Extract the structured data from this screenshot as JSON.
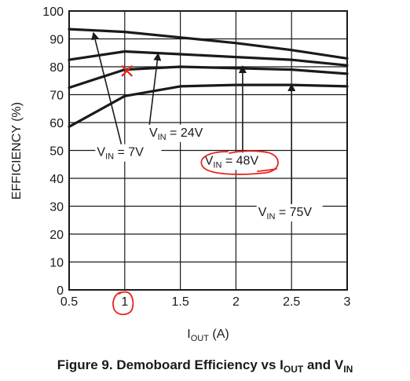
{
  "chart_data": {
    "type": "line",
    "xlabel": {
      "main": "I",
      "sub": "OUT",
      "rest": " (A)"
    },
    "ylabel": "EFFICIENCY (%)",
    "xlim": [
      0.5,
      3
    ],
    "ylim": [
      0,
      100
    ],
    "xticks": [
      {
        "value": 0.5,
        "label": "0.5"
      },
      {
        "value": 1,
        "label": "1"
      },
      {
        "value": 1.5,
        "label": "1.5"
      },
      {
        "value": 2,
        "label": "2"
      },
      {
        "value": 2.5,
        "label": "2.5"
      },
      {
        "value": 3,
        "label": "3"
      }
    ],
    "yticks": [
      {
        "value": 0,
        "label": "0"
      },
      {
        "value": 10,
        "label": "10"
      },
      {
        "value": 20,
        "label": "20"
      },
      {
        "value": 30,
        "label": "30"
      },
      {
        "value": 40,
        "label": "40"
      },
      {
        "value": 50,
        "label": "50"
      },
      {
        "value": 60,
        "label": "60"
      },
      {
        "value": 70,
        "label": "70"
      },
      {
        "value": 80,
        "label": "80"
      },
      {
        "value": 90,
        "label": "90"
      },
      {
        "value": 100,
        "label": "100"
      }
    ],
    "grid": true,
    "series": [
      {
        "name": "VIN = 7V",
        "x": [
          0.5,
          1,
          1.5,
          2,
          2.5,
          3
        ],
        "y": [
          93.5,
          92.5,
          90.5,
          88.5,
          86,
          83
        ]
      },
      {
        "name": "VIN = 24V",
        "x": [
          0.5,
          1,
          1.5,
          2,
          2.5,
          3
        ],
        "y": [
          82.5,
          85.5,
          84.5,
          83.5,
          82.5,
          80.5
        ]
      },
      {
        "name": "VIN = 48V",
        "x": [
          0.5,
          1,
          1.5,
          2,
          2.5,
          3
        ],
        "y": [
          72.5,
          79,
          80,
          79.5,
          79,
          77.5
        ]
      },
      {
        "name": "VIN = 75V",
        "x": [
          0.5,
          1,
          1.5,
          2,
          2.5,
          3
        ],
        "y": [
          58.5,
          69.5,
          73,
          73.5,
          73.5,
          73
        ]
      }
    ],
    "annotations": [
      {
        "main": "V",
        "sub": "IN",
        "rest": " = 7V",
        "text_at": [
          0.75,
          48
        ],
        "arrow_from": [
          0.98,
          50.5
        ],
        "arrow_to": [
          0.72,
          92
        ]
      },
      {
        "main": "V",
        "sub": "IN",
        "rest": " = 24V",
        "text_at": [
          1.22,
          55
        ],
        "arrow_from": [
          1.22,
          58.5
        ],
        "arrow_to": [
          1.3,
          84.5
        ]
      },
      {
        "main": "V",
        "sub": "IN",
        "rest": " = 48V",
        "text_at": [
          1.72,
          45
        ],
        "arrow_from": [
          2.06,
          47.5
        ],
        "arrow_to": [
          2.06,
          80
        ]
      },
      {
        "main": "V",
        "sub": "IN",
        "rest": " = 75V",
        "text_at": [
          2.2,
          26.5
        ],
        "arrow_from": [
          2.5,
          29
        ],
        "arrow_to": [
          2.5,
          73.5
        ]
      }
    ],
    "markup": {
      "color": "#e8221b",
      "cross_at": [
        1.02,
        78.5
      ]
    }
  },
  "caption": {
    "prefix": "Figure 9. Demoboard Efficiency vs I",
    "sub1": "OUT",
    "mid": " and V",
    "sub2": "IN"
  }
}
